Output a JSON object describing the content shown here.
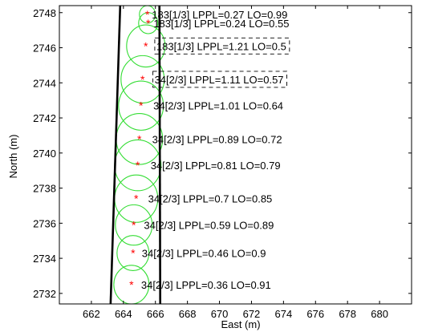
{
  "chart_data": {
    "type": "scatter",
    "title": "",
    "xlabel": "East (m)",
    "ylabel": "North (m)",
    "xlim": [
      660,
      682
    ],
    "ylim": [
      2731.4,
      2748.4
    ],
    "grid": false,
    "x_ticks": [
      662,
      664,
      666,
      668,
      670,
      672,
      674,
      676,
      678,
      680
    ],
    "y_ticks": [
      2732,
      2734,
      2736,
      2738,
      2740,
      2742,
      2744,
      2746,
      2748
    ],
    "boundary_lines": [
      {
        "x": [
          663.2,
          663.8
        ],
        "y": [
          2731.4,
          2748.4
        ]
      },
      {
        "x": [
          666.3,
          666.25
        ],
        "y": [
          2731.4,
          2748.4
        ]
      }
    ],
    "points": [
      {
        "x": 664.5,
        "y": 2732.5,
        "radius": 1.1,
        "label": "34[2/3] LPPL=0.36   LO=0.91",
        "dashed_box": false
      },
      {
        "x": 664.6,
        "y": 2734.3,
        "radius": 1.0,
        "label": "34[2/3] LPPL=0.46   LO=0.9",
        "dashed_box": false
      },
      {
        "x": 664.65,
        "y": 2735.9,
        "radius": 1.15,
        "label": "34[2/3] LPPL=0.59   LO=0.89",
        "dashed_box": false
      },
      {
        "x": 664.8,
        "y": 2737.4,
        "radius": 1.35,
        "label": "34[2/3] LPPL=0.7   LO=0.85",
        "dashed_box": false
      },
      {
        "x": 664.9,
        "y": 2739.3,
        "radius": 1.45,
        "label": "34[2/3] LPPL=0.81   LO=0.79",
        "dashed_box": false
      },
      {
        "x": 665.0,
        "y": 2740.8,
        "radius": 1.45,
        "label": "34[2/3] LPPL=0.89   LO=0.72",
        "dashed_box": false
      },
      {
        "x": 665.1,
        "y": 2742.7,
        "radius": 1.4,
        "label": "34[2/3] LPPL=1.01   LO=0.64",
        "dashed_box": false
      },
      {
        "x": 665.2,
        "y": 2744.2,
        "radius": 1.35,
        "label": "34[2/3] LPPL=1.11   LO=0.57",
        "dashed_box": true
      },
      {
        "x": 665.4,
        "y": 2746.1,
        "radius": 1.2,
        "label": "183[1/3] LPPL=1.21   LO=0.5",
        "dashed_box": true
      },
      {
        "x": 665.55,
        "y": 2747.4,
        "radius": 0.6,
        "label": "183[1/3] LPPL=0.24   LO=0.55",
        "dashed_box": false
      },
      {
        "x": 665.5,
        "y": 2747.9,
        "radius": 0.5,
        "label": "183[1/3] LPPL=0.27   LO=0.99",
        "dashed_box": false
      }
    ],
    "colors": {
      "circle": "#33dd33",
      "marker": "#ff0000",
      "boundary": "#000000",
      "axis": "#000000"
    }
  }
}
